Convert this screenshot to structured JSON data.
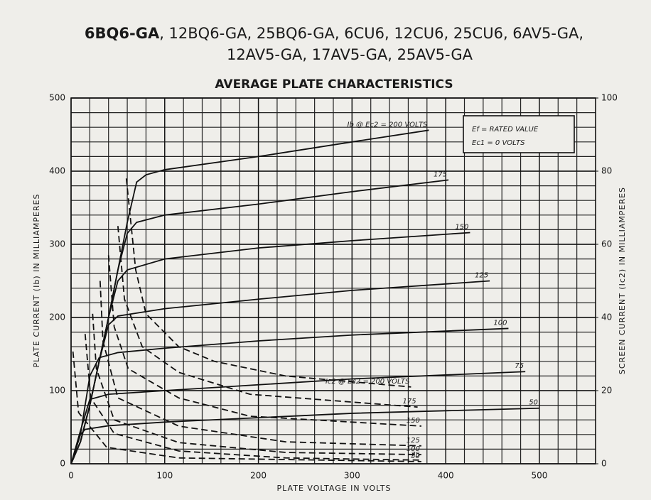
{
  "chart_data": {
    "type": "line",
    "title": [
      "6BQ6-GA",
      ", 12BQ6-GA, 25BQ6-GA, 6CU6, 12CU6, 25CU6, 6AV5-GA,",
      "12AV5-GA, 17AV5-GA, 25AV5-GA"
    ],
    "subtitle": "AVERAGE PLATE CHARACTERISTICS",
    "xlabel": "PLATE VOLTAGE IN VOLTS",
    "ylabel": "PLATE CURRENT (Ib) IN MILLIAMPERES",
    "y2label": "SCREEN CURRENT (Ic2) IN MILLIAMPERES",
    "annotations": [
      "Ef = RATED VALUE",
      "Ec1 = 0 VOLTS"
    ],
    "xlim": [
      0,
      560
    ],
    "xticks": [
      0,
      100,
      200,
      300,
      400,
      500
    ],
    "ylim": [
      0,
      500
    ],
    "yticks": [
      0,
      100,
      200,
      300,
      400,
      500
    ],
    "y2lim": [
      0,
      100
    ],
    "y2ticks": [
      0,
      20,
      40,
      60,
      80,
      100
    ],
    "grid": true,
    "series": [
      {
        "name": "Ib @ Ec2 = 200 VOLTS",
        "color": "#111111",
        "dashed": false,
        "x": [
          0,
          10,
          20,
          30,
          40,
          50,
          60,
          70,
          80,
          100,
          200,
          300,
          382
        ],
        "values": [
          0,
          30,
          80,
          140,
          200,
          265,
          330,
          385,
          395,
          402,
          420,
          440,
          456
        ]
      },
      {
        "name": "175",
        "color": "#111111",
        "dashed": false,
        "x": [
          0,
          10,
          20,
          30,
          40,
          50,
          60,
          70,
          100,
          200,
          300,
          403
        ],
        "values": [
          0,
          30,
          80,
          140,
          200,
          265,
          315,
          330,
          340,
          355,
          372,
          388
        ]
      },
      {
        "name": "150",
        "color": "#111111",
        "dashed": false,
        "x": [
          0,
          10,
          20,
          30,
          40,
          50,
          60,
          100,
          200,
          300,
          426
        ],
        "values": [
          0,
          30,
          80,
          140,
          200,
          250,
          265,
          280,
          295,
          305,
          316
        ]
      },
      {
        "name": "125",
        "color": "#111111",
        "dashed": false,
        "x": [
          0,
          10,
          20,
          30,
          40,
          50,
          100,
          200,
          300,
          447
        ],
        "values": [
          0,
          30,
          80,
          140,
          190,
          202,
          212,
          225,
          237,
          250
        ]
      },
      {
        "name": "100",
        "color": "#111111",
        "dashed": false,
        "x": [
          0,
          10,
          20,
          30,
          50,
          100,
          200,
          300,
          467
        ],
        "values": [
          0,
          40,
          120,
          145,
          152,
          158,
          168,
          176,
          185
        ]
      },
      {
        "name": "75",
        "color": "#111111",
        "dashed": false,
        "x": [
          0,
          10,
          20,
          40,
          100,
          200,
          300,
          485
        ],
        "values": [
          0,
          45,
          88,
          95,
          100,
          108,
          116,
          126
        ]
      },
      {
        "name": "50",
        "color": "#111111",
        "dashed": false,
        "x": [
          0,
          10,
          15,
          40,
          100,
          200,
          300,
          500
        ],
        "values": [
          0,
          40,
          47,
          52,
          57,
          63,
          69,
          76
        ]
      },
      {
        "name": "Ic2 @ Ec2 = 200 VOLTS",
        "color": "#111111",
        "dashed": true,
        "axis": "y2",
        "x": [
          59,
          69,
          80,
          115,
          153,
          229,
          363
        ],
        "values": [
          78,
          53,
          41,
          32,
          28,
          24,
          21
        ]
      },
      {
        "name": "175",
        "color": "#111111",
        "dashed": true,
        "axis": "y2",
        "x": [
          50,
          57,
          76,
          115,
          191,
          370
        ],
        "values": [
          65,
          45,
          32,
          25,
          19,
          15.5
        ]
      },
      {
        "name": "150",
        "color": "#111111",
        "dashed": true,
        "axis": "y2",
        "x": [
          40,
          46,
          61,
          115,
          191,
          374
        ],
        "values": [
          57,
          37.5,
          26,
          18,
          13,
          10.3
        ]
      },
      {
        "name": "125",
        "color": "#111111",
        "dashed": true,
        "axis": "y2",
        "x": [
          31,
          34,
          50,
          115,
          229,
          374
        ],
        "values": [
          50,
          33.6,
          18,
          10.3,
          6,
          4.9
        ]
      },
      {
        "name": "100",
        "color": "#111111",
        "dashed": true,
        "axis": "y2",
        "x": [
          23,
          27,
          46,
          115,
          229,
          374
        ],
        "values": [
          41,
          26,
          12,
          5.8,
          3.1,
          2.5
        ]
      },
      {
        "name": "75",
        "color": "#111111",
        "dashed": true,
        "axis": "y2",
        "x": [
          15,
          21,
          46,
          115,
          229,
          374
        ],
        "values": [
          35.5,
          18,
          8.3,
          3.5,
          1.6,
          1
        ]
      },
      {
        "name": "50",
        "color": "#111111",
        "dashed": true,
        "axis": "y2",
        "x": [
          2,
          8,
          38,
          115,
          374
        ],
        "values": [
          30.7,
          14,
          4.5,
          1.6,
          0.6
        ]
      }
    ]
  }
}
